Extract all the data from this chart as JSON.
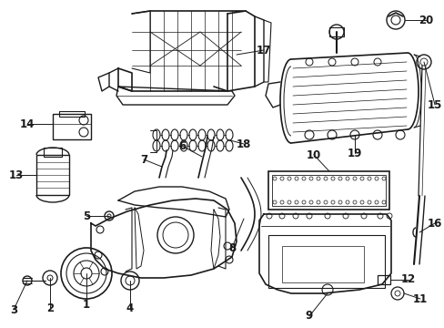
{
  "bg_color": "#ffffff",
  "line_color": "#1a1a1a",
  "fig_width": 4.89,
  "fig_height": 3.6,
  "dpi": 100,
  "label_fontsize": 8.5,
  "label_color": "#1a1a1a"
}
